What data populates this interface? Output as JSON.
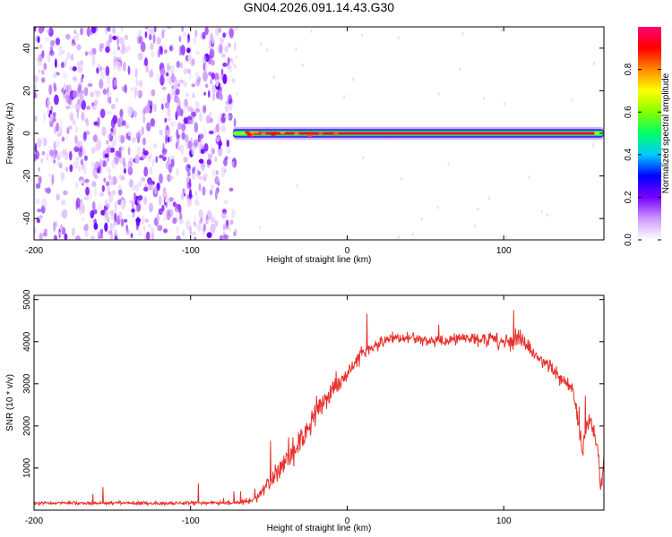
{
  "figure": {
    "title": "GN04.2026.091.14.43.G30"
  },
  "colors": {
    "snr_line": "#e8302a",
    "spectrogram_noise": "#7b2fe0",
    "signal_peak": "#e4004a",
    "axis": "#000000"
  },
  "chart_data": [
    {
      "type": "heatmap",
      "title": "GN04.2026.091.14.43.G30",
      "xlabel": "Height of straight line (km)",
      "ylabel": "Frequency (Hz)",
      "xlim": [
        -200,
        164
      ],
      "ylim": [
        -50,
        50
      ],
      "x_ticks": [
        -200,
        -100,
        0,
        100
      ],
      "y_ticks": [
        -40,
        -20,
        0,
        20,
        40
      ],
      "colorbar": {
        "label": "Normalized spectral amplitude",
        "range": [
          0,
          1
        ],
        "ticks": [
          0.0,
          0.2,
          0.4,
          0.6,
          0.8
        ],
        "tick_labels": [
          "0.0",
          "0.2",
          "0.4",
          "0.6",
          "0.8"
        ],
        "colormap": [
          "#ffffff",
          "#cc99ff",
          "#7700ff",
          "#0000ff",
          "#00ccff",
          "#00ff66",
          "#88ff00",
          "#ffff00",
          "#ff8800",
          "#ff0000",
          "#ff0077"
        ]
      },
      "noise_region_x": [
        -200,
        -71
      ],
      "signal": {
        "frequency_hz": 0,
        "x_range": [
          -73,
          164
        ],
        "peak_amplitude": 1.0
      },
      "grid": false
    },
    {
      "type": "line",
      "xlabel": "Height of straight line (km)",
      "ylabel": "SNR (10 * v/v)",
      "xlim": [
        -200,
        164
      ],
      "ylim": [
        0,
        5100
      ],
      "x_ticks": [
        -200,
        -100,
        0,
        100
      ],
      "y_ticks": [
        1000,
        2000,
        3000,
        4000,
        5000
      ],
      "grid": false,
      "series": [
        {
          "x": [
            -200,
            -180,
            -160,
            -140,
            -120,
            -100,
            -80,
            -70,
            -60,
            -55,
            -50,
            -45,
            -40,
            -35,
            -30,
            -25,
            -20,
            -15,
            -10,
            -5,
            0,
            5,
            10,
            15,
            20,
            25,
            30,
            35,
            40,
            50,
            60,
            70,
            80,
            90,
            100,
            105,
            110,
            115,
            120,
            125,
            130,
            135,
            140,
            145,
            148,
            150,
            152,
            155,
            160,
            162,
            164
          ],
          "y": [
            160,
            170,
            165,
            170,
            160,
            170,
            170,
            180,
            250,
            400,
            650,
            900,
            1100,
            1350,
            1600,
            1900,
            2300,
            2600,
            2850,
            3050,
            3250,
            3500,
            3700,
            3850,
            3950,
            4050,
            4100,
            4080,
            4100,
            4050,
            4000,
            4050,
            4100,
            4080,
            4050,
            4000,
            4100,
            3900,
            3700,
            3550,
            3350,
            3200,
            3000,
            2750,
            2000,
            1300,
            1900,
            2100,
            1500,
            400,
            1200
          ],
          "spread": [
            60,
            60,
            60,
            60,
            60,
            60,
            60,
            70,
            150,
            200,
            350,
            450,
            500,
            550,
            550,
            500,
            500,
            450,
            400,
            380,
            350,
            300,
            280,
            250,
            220,
            200,
            200,
            200,
            200,
            200,
            200,
            220,
            250,
            300,
            300,
            300,
            300,
            280,
            260,
            250,
            250,
            250,
            250,
            250,
            350,
            400,
            300,
            300,
            300,
            300,
            400
          ]
        }
      ]
    }
  ]
}
